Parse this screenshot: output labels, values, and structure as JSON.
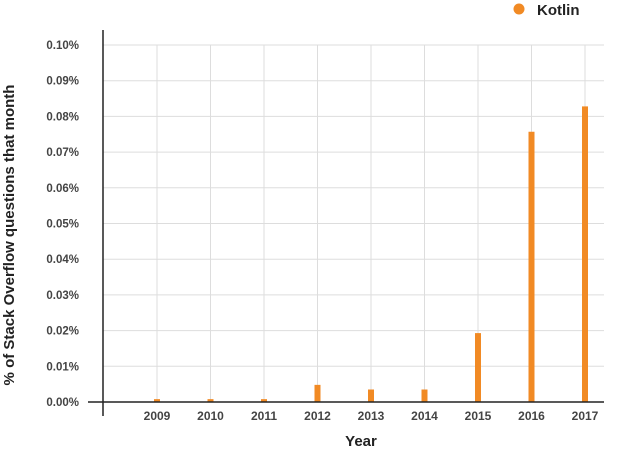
{
  "chart_data": {
    "type": "bar",
    "categories": [
      "2009",
      "2010",
      "2011",
      "2012",
      "2013",
      "2014",
      "2015",
      "2016",
      "2017"
    ],
    "series": [
      {
        "name": "Kotlin",
        "color": "#F18A24",
        "values": [
          0.0008,
          0.0008,
          0.0008,
          0.0048,
          0.0035,
          0.0035,
          0.0193,
          0.0757,
          0.0828
        ]
      }
    ],
    "xlabel": "Year",
    "ylabel": "% of Stack Overflow questions that month",
    "ylim": [
      0,
      0.1
    ],
    "yticks": [
      "0.00%",
      "0.01%",
      "0.02%",
      "0.03%",
      "0.04%",
      "0.05%",
      "0.06%",
      "0.07%",
      "0.08%",
      "0.09%",
      "0.10%"
    ],
    "grid": true,
    "legend_position": "top-right"
  }
}
